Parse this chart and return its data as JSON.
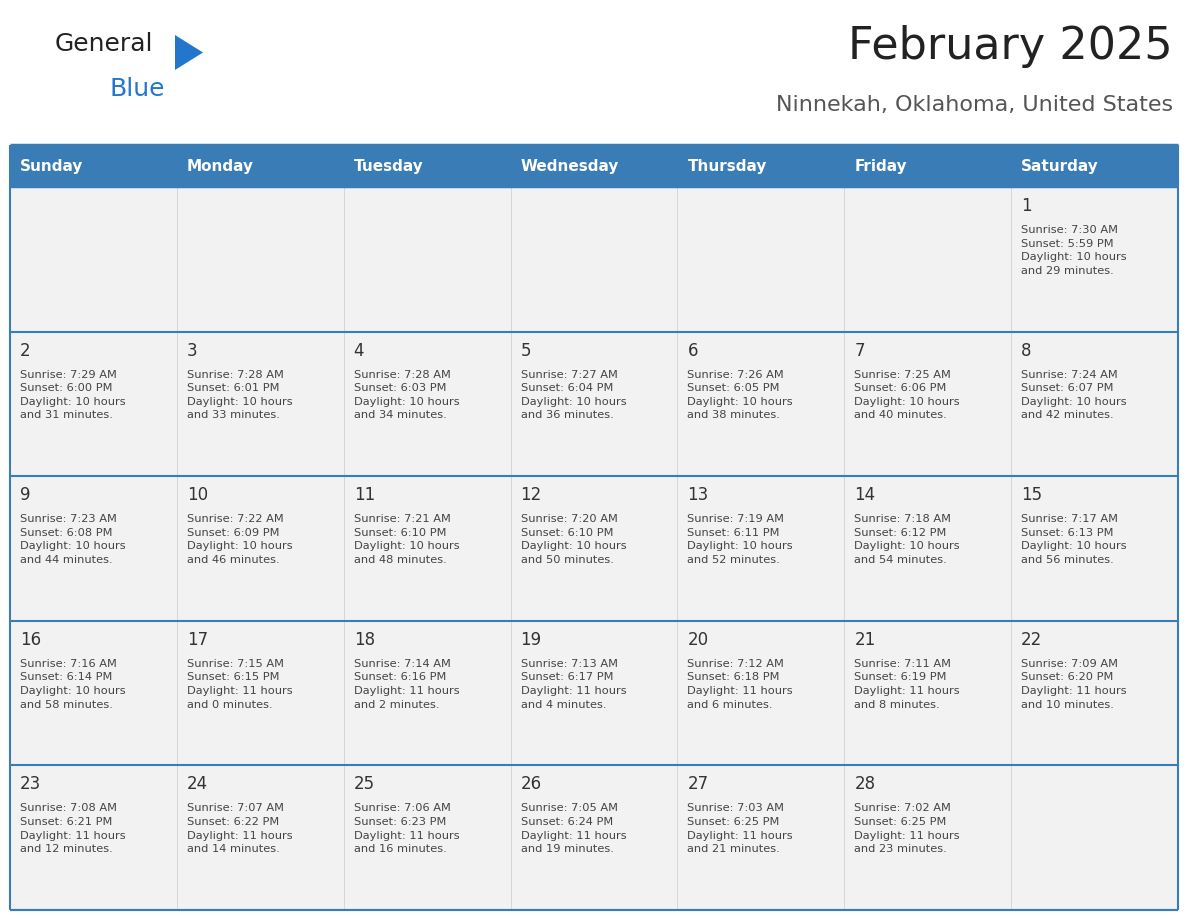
{
  "title": "February 2025",
  "subtitle": "Ninnekah, Oklahoma, United States",
  "header_bg": "#3a7cb5",
  "header_text_color": "#ffffff",
  "cell_bg": "#f2f2f2",
  "border_color": "#3a7cb5",
  "day_names": [
    "Sunday",
    "Monday",
    "Tuesday",
    "Wednesday",
    "Thursday",
    "Friday",
    "Saturday"
  ],
  "title_color": "#222222",
  "subtitle_color": "#555555",
  "day_num_color": "#333333",
  "cell_text_color": "#444444",
  "logo_general_color": "#222222",
  "logo_blue_color": "#2277cc",
  "logo_triangle_color": "#2277cc",
  "weeks": [
    [
      {
        "day": 0,
        "text": ""
      },
      {
        "day": 0,
        "text": ""
      },
      {
        "day": 0,
        "text": ""
      },
      {
        "day": 0,
        "text": ""
      },
      {
        "day": 0,
        "text": ""
      },
      {
        "day": 0,
        "text": ""
      },
      {
        "day": 1,
        "text": "Sunrise: 7:30 AM\nSunset: 5:59 PM\nDaylight: 10 hours\nand 29 minutes."
      }
    ],
    [
      {
        "day": 2,
        "text": "Sunrise: 7:29 AM\nSunset: 6:00 PM\nDaylight: 10 hours\nand 31 minutes."
      },
      {
        "day": 3,
        "text": "Sunrise: 7:28 AM\nSunset: 6:01 PM\nDaylight: 10 hours\nand 33 minutes."
      },
      {
        "day": 4,
        "text": "Sunrise: 7:28 AM\nSunset: 6:03 PM\nDaylight: 10 hours\nand 34 minutes."
      },
      {
        "day": 5,
        "text": "Sunrise: 7:27 AM\nSunset: 6:04 PM\nDaylight: 10 hours\nand 36 minutes."
      },
      {
        "day": 6,
        "text": "Sunrise: 7:26 AM\nSunset: 6:05 PM\nDaylight: 10 hours\nand 38 minutes."
      },
      {
        "day": 7,
        "text": "Sunrise: 7:25 AM\nSunset: 6:06 PM\nDaylight: 10 hours\nand 40 minutes."
      },
      {
        "day": 8,
        "text": "Sunrise: 7:24 AM\nSunset: 6:07 PM\nDaylight: 10 hours\nand 42 minutes."
      }
    ],
    [
      {
        "day": 9,
        "text": "Sunrise: 7:23 AM\nSunset: 6:08 PM\nDaylight: 10 hours\nand 44 minutes."
      },
      {
        "day": 10,
        "text": "Sunrise: 7:22 AM\nSunset: 6:09 PM\nDaylight: 10 hours\nand 46 minutes."
      },
      {
        "day": 11,
        "text": "Sunrise: 7:21 AM\nSunset: 6:10 PM\nDaylight: 10 hours\nand 48 minutes."
      },
      {
        "day": 12,
        "text": "Sunrise: 7:20 AM\nSunset: 6:10 PM\nDaylight: 10 hours\nand 50 minutes."
      },
      {
        "day": 13,
        "text": "Sunrise: 7:19 AM\nSunset: 6:11 PM\nDaylight: 10 hours\nand 52 minutes."
      },
      {
        "day": 14,
        "text": "Sunrise: 7:18 AM\nSunset: 6:12 PM\nDaylight: 10 hours\nand 54 minutes."
      },
      {
        "day": 15,
        "text": "Sunrise: 7:17 AM\nSunset: 6:13 PM\nDaylight: 10 hours\nand 56 minutes."
      }
    ],
    [
      {
        "day": 16,
        "text": "Sunrise: 7:16 AM\nSunset: 6:14 PM\nDaylight: 10 hours\nand 58 minutes."
      },
      {
        "day": 17,
        "text": "Sunrise: 7:15 AM\nSunset: 6:15 PM\nDaylight: 11 hours\nand 0 minutes."
      },
      {
        "day": 18,
        "text": "Sunrise: 7:14 AM\nSunset: 6:16 PM\nDaylight: 11 hours\nand 2 minutes."
      },
      {
        "day": 19,
        "text": "Sunrise: 7:13 AM\nSunset: 6:17 PM\nDaylight: 11 hours\nand 4 minutes."
      },
      {
        "day": 20,
        "text": "Sunrise: 7:12 AM\nSunset: 6:18 PM\nDaylight: 11 hours\nand 6 minutes."
      },
      {
        "day": 21,
        "text": "Sunrise: 7:11 AM\nSunset: 6:19 PM\nDaylight: 11 hours\nand 8 minutes."
      },
      {
        "day": 22,
        "text": "Sunrise: 7:09 AM\nSunset: 6:20 PM\nDaylight: 11 hours\nand 10 minutes."
      }
    ],
    [
      {
        "day": 23,
        "text": "Sunrise: 7:08 AM\nSunset: 6:21 PM\nDaylight: 11 hours\nand 12 minutes."
      },
      {
        "day": 24,
        "text": "Sunrise: 7:07 AM\nSunset: 6:22 PM\nDaylight: 11 hours\nand 14 minutes."
      },
      {
        "day": 25,
        "text": "Sunrise: 7:06 AM\nSunset: 6:23 PM\nDaylight: 11 hours\nand 16 minutes."
      },
      {
        "day": 26,
        "text": "Sunrise: 7:05 AM\nSunset: 6:24 PM\nDaylight: 11 hours\nand 19 minutes."
      },
      {
        "day": 27,
        "text": "Sunrise: 7:03 AM\nSunset: 6:25 PM\nDaylight: 11 hours\nand 21 minutes."
      },
      {
        "day": 28,
        "text": "Sunrise: 7:02 AM\nSunset: 6:25 PM\nDaylight: 11 hours\nand 23 minutes."
      },
      {
        "day": 0,
        "text": ""
      }
    ]
  ]
}
